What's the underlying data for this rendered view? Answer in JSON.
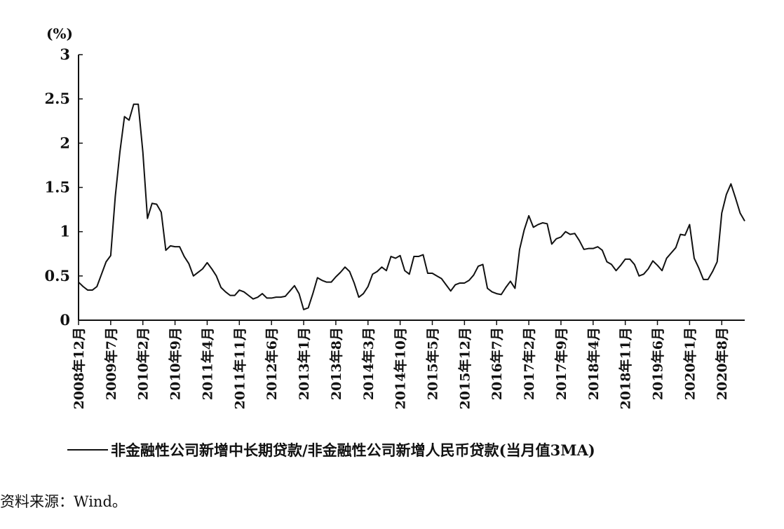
{
  "chart_data": {
    "type": "line",
    "unit_label": "(%)",
    "ylim": [
      0,
      3
    ],
    "yticks": [
      "0",
      "0.5",
      "1",
      "1.5",
      "2",
      "2.5",
      "3"
    ],
    "xtick_labels": [
      "2008年12月",
      "2009年7月",
      "2010年2月",
      "2010年9月",
      "2011年4月",
      "2011年11月",
      "2012年6月",
      "2013年1月",
      "2013年8月",
      "2014年3月",
      "2014年10月",
      "2015年5月",
      "2015年12月",
      "2016年7月",
      "2017年2月",
      "2017年9月",
      "2018年4月",
      "2018年11月",
      "2019年6月",
      "2020年1月",
      "2020年8月"
    ],
    "grid": false,
    "legend_position": "bottom",
    "series": [
      {
        "name": "非金融性公司新增中长期贷款/非金融性公司新增人民币贷款(当月值3MA)",
        "values": [
          0.43,
          0.38,
          0.34,
          0.34,
          0.38,
          0.52,
          0.66,
          0.73,
          1.4,
          1.9,
          2.3,
          2.26,
          2.44,
          2.44,
          1.9,
          1.15,
          1.32,
          1.31,
          1.22,
          0.79,
          0.84,
          0.83,
          0.83,
          0.72,
          0.64,
          0.5,
          0.54,
          0.58,
          0.65,
          0.58,
          0.5,
          0.37,
          0.32,
          0.28,
          0.28,
          0.34,
          0.32,
          0.28,
          0.24,
          0.26,
          0.3,
          0.25,
          0.25,
          0.26,
          0.26,
          0.27,
          0.33,
          0.39,
          0.3,
          0.12,
          0.14,
          0.3,
          0.48,
          0.45,
          0.43,
          0.43,
          0.49,
          0.54,
          0.6,
          0.55,
          0.42,
          0.26,
          0.3,
          0.38,
          0.52,
          0.55,
          0.6,
          0.56,
          0.72,
          0.7,
          0.73,
          0.56,
          0.52,
          0.72,
          0.72,
          0.74,
          0.53,
          0.53,
          0.5,
          0.47,
          0.4,
          0.33,
          0.4,
          0.42,
          0.42,
          0.45,
          0.51,
          0.61,
          0.63,
          0.36,
          0.32,
          0.3,
          0.29,
          0.37,
          0.44,
          0.36,
          0.8,
          1.02,
          1.18,
          1.05,
          1.08,
          1.1,
          1.09,
          0.86,
          0.92,
          0.94,
          1.0,
          0.97,
          0.98,
          0.9,
          0.8,
          0.81,
          0.81,
          0.83,
          0.79,
          0.66,
          0.63,
          0.56,
          0.62,
          0.69,
          0.69,
          0.63,
          0.5,
          0.52,
          0.58,
          0.67,
          0.62,
          0.56,
          0.7,
          0.76,
          0.82,
          0.97,
          0.96,
          1.08,
          0.7,
          0.59,
          0.46,
          0.46,
          0.55,
          0.66,
          1.21,
          1.42,
          1.54,
          1.38,
          1.21,
          1.12
        ]
      }
    ]
  },
  "footer": {
    "source": "资料来源：Wind。"
  }
}
